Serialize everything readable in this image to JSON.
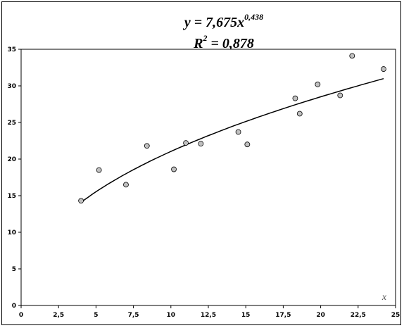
{
  "chart_data": {
    "type": "scatter",
    "title_line1": {
      "lhs": "y = 7,675x",
      "exponent": "0,438"
    },
    "title_line2": {
      "lhs": "R",
      "exponent": "2",
      "rhs": " = 0,878"
    },
    "xlabel": "x",
    "ylabel": "",
    "xlim": [
      0,
      25
    ],
    "ylim": [
      0,
      35
    ],
    "x_ticks": [
      "0",
      "2,5",
      "5",
      "7,5",
      "10",
      "12,5",
      "15",
      "17,5",
      "20",
      "22,5",
      "25"
    ],
    "y_ticks": [
      "0",
      "5",
      "10",
      "15",
      "20",
      "25",
      "30",
      "35"
    ],
    "grid": false,
    "legend": "none",
    "series": [
      {
        "marker_color": "#c0c0c0",
        "points": [
          {
            "x": 4.0,
            "y": 14.3
          },
          {
            "x": 5.2,
            "y": 18.5
          },
          {
            "x": 7.0,
            "y": 16.5
          },
          {
            "x": 8.4,
            "y": 21.8
          },
          {
            "x": 10.2,
            "y": 18.6
          },
          {
            "x": 11.0,
            "y": 22.2
          },
          {
            "x": 12.0,
            "y": 22.1
          },
          {
            "x": 14.5,
            "y": 23.7
          },
          {
            "x": 15.1,
            "y": 22.0
          },
          {
            "x": 18.3,
            "y": 28.3
          },
          {
            "x": 18.6,
            "y": 26.2
          },
          {
            "x": 19.8,
            "y": 30.2
          },
          {
            "x": 21.3,
            "y": 28.7
          },
          {
            "x": 22.1,
            "y": 34.1
          },
          {
            "x": 24.2,
            "y": 32.3
          }
        ]
      }
    ],
    "trendline": {
      "type": "power",
      "coefficient": 7.675,
      "exponent": 0.438,
      "x_range": [
        4.0,
        24.2
      ],
      "color": "#000000"
    }
  }
}
